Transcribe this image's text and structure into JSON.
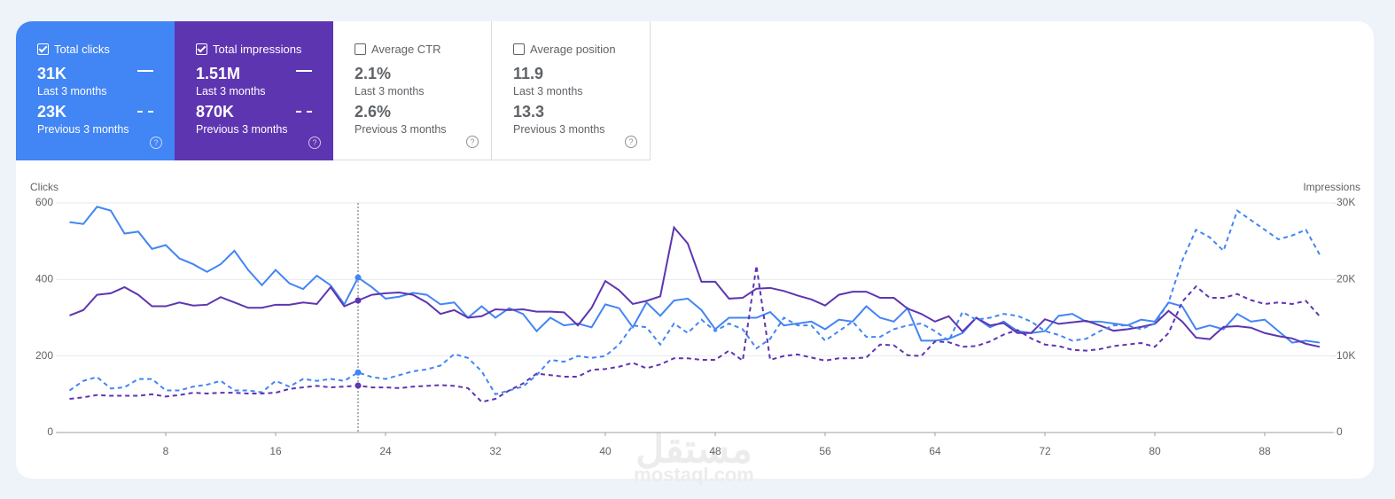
{
  "cards": [
    {
      "label": "Total clicks",
      "checked": true,
      "current": "31K",
      "current_period": "Last 3 months",
      "previous": "23K",
      "previous_period": "Previous 3 months"
    },
    {
      "label": "Total impressions",
      "checked": true,
      "current": "1.51M",
      "current_period": "Last 3 months",
      "previous": "870K",
      "previous_period": "Previous 3 months"
    },
    {
      "label": "Average CTR",
      "checked": false,
      "current": "2.1%",
      "current_period": "Last 3 months",
      "previous": "2.6%",
      "previous_period": "Previous 3 months"
    },
    {
      "label": "Average position",
      "checked": false,
      "current": "11.9",
      "current_period": "Last 3 months",
      "previous": "13.3",
      "previous_period": "Previous 3 months"
    }
  ],
  "watermark": [
    "مستقل",
    "mostaql.com"
  ],
  "chart_data": {
    "type": "line",
    "y_label": "Clicks",
    "y2_label": "Impressions",
    "x": [
      1,
      2,
      3,
      4,
      5,
      6,
      7,
      8,
      9,
      10,
      11,
      12,
      13,
      14,
      15,
      16,
      17,
      18,
      19,
      20,
      21,
      22,
      23,
      24,
      25,
      26,
      27,
      28,
      29,
      30,
      31,
      32,
      33,
      34,
      35,
      36,
      37,
      38,
      39,
      40,
      41,
      42,
      43,
      44,
      45,
      46,
      47,
      48,
      49,
      50,
      51,
      52,
      53,
      54,
      55,
      56,
      57,
      58,
      59,
      60,
      61,
      62,
      63,
      64,
      65,
      66,
      67,
      68,
      69,
      70,
      71,
      72,
      73,
      74,
      75,
      76,
      77,
      78,
      79,
      80,
      81,
      82,
      83,
      84,
      85,
      86,
      87,
      88,
      89,
      90,
      91,
      92
    ],
    "xlim": [
      0,
      93
    ],
    "xticks": [
      8,
      16,
      24,
      32,
      40,
      48,
      56,
      64,
      72,
      80,
      88
    ],
    "ylim": [
      0,
      600
    ],
    "yticks": [
      0,
      200,
      400,
      600
    ],
    "y2lim": [
      0,
      30000
    ],
    "y2ticks": [
      0,
      {
        "value": 10000,
        "label": "10K"
      },
      {
        "value": 20000,
        "label": "20K"
      },
      {
        "value": 30000,
        "label": "30K"
      }
    ],
    "grid": true,
    "highlight_x": 22,
    "series": [
      {
        "color": "#4285f4",
        "dash": "solid",
        "axis": "y",
        "values": [
          550,
          545,
          590,
          580,
          520,
          525,
          480,
          490,
          455,
          440,
          420,
          440,
          475,
          425,
          385,
          425,
          390,
          375,
          410,
          385,
          335,
          405,
          380,
          350,
          355,
          365,
          360,
          335,
          340,
          300,
          330,
          300,
          325,
          310,
          265,
          300,
          280,
          285,
          275,
          335,
          325,
          275,
          340,
          305,
          345,
          350,
          320,
          270,
          300,
          300,
          300,
          315,
          280,
          285,
          290,
          270,
          295,
          290,
          330,
          300,
          290,
          325,
          240,
          240,
          245,
          260,
          300,
          275,
          290,
          265,
          260,
          265,
          305,
          310,
          290,
          290,
          285,
          280,
          295,
          290,
          340,
          330,
          270,
          280,
          270,
          310,
          290,
          295,
          265,
          235,
          240,
          235
        ]
      },
      {
        "color": "#5e35b1",
        "dash": "solid",
        "axis": "y2",
        "values": [
          15300,
          16000,
          18000,
          18200,
          19000,
          18000,
          16500,
          16500,
          17000,
          16600,
          16700,
          17700,
          17000,
          16300,
          16300,
          16700,
          16700,
          17000,
          16800,
          19000,
          16500,
          17260,
          18000,
          18200,
          18300,
          18000,
          17000,
          15500,
          16000,
          15000,
          15200,
          16100,
          16000,
          16100,
          15800,
          15800,
          15700,
          14000,
          16300,
          19800,
          18600,
          16800,
          17200,
          17800,
          26800,
          24700,
          19700,
          19700,
          17500,
          17600,
          18800,
          18900,
          18500,
          17900,
          17400,
          16600,
          18000,
          18400,
          18400,
          17600,
          17600,
          16200,
          15500,
          14500,
          15200,
          13200,
          15000,
          14000,
          14300,
          13000,
          13000,
          14800,
          14200,
          14400,
          14600,
          14000,
          13300,
          13500,
          13800,
          14200,
          15900,
          14500,
          12400,
          12200,
          13800,
          13900,
          13700,
          13000,
          12600,
          12300,
          11600,
          11200
        ]
      },
      {
        "color": "#4285f4",
        "dash": "dashed",
        "axis": "y",
        "values": [
          110,
          135,
          145,
          115,
          118,
          140,
          140,
          110,
          110,
          120,
          125,
          135,
          110,
          110,
          105,
          135,
          120,
          140,
          135,
          140,
          135,
          157,
          145,
          140,
          150,
          160,
          165,
          175,
          205,
          195,
          160,
          100,
          110,
          120,
          150,
          190,
          185,
          200,
          195,
          200,
          230,
          280,
          275,
          230,
          285,
          260,
          295,
          265,
          285,
          270,
          220,
          245,
          300,
          280,
          280,
          240,
          265,
          290,
          250,
          250,
          270,
          280,
          285,
          265,
          240,
          315,
          295,
          300,
          310,
          305,
          290,
          265,
          255,
          240,
          245,
          265,
          280,
          280,
          270,
          285,
          340,
          450,
          530,
          510,
          475,
          580,
          555,
          530,
          505,
          515,
          530,
          465
        ]
      },
      {
        "color": "#5e35b1",
        "dash": "dashed",
        "axis": "y2",
        "values": [
          4400,
          4600,
          4900,
          4800,
          4800,
          4800,
          5000,
          4700,
          4900,
          5200,
          5100,
          5200,
          5200,
          5100,
          5100,
          5200,
          5700,
          5900,
          6100,
          5900,
          6000,
          6140,
          5900,
          5900,
          5800,
          6000,
          6100,
          6200,
          6100,
          5800,
          4000,
          4400,
          5500,
          6400,
          7700,
          7500,
          7300,
          7300,
          8200,
          8300,
          8600,
          9100,
          8400,
          8900,
          9700,
          9700,
          9500,
          9500,
          10700,
          9400,
          21800,
          9500,
          10000,
          10200,
          9800,
          9400,
          9700,
          9700,
          9800,
          11500,
          11400,
          10100,
          10000,
          11900,
          11800,
          11200,
          11300,
          11900,
          12800,
          13400,
          12300,
          11500,
          11300,
          10800,
          10700,
          10900,
          11300,
          11500,
          11700,
          11200,
          13000,
          17100,
          19100,
          17600,
          17600,
          18100,
          17300,
          16800,
          17000,
          16800,
          17200,
          15200
        ]
      }
    ]
  }
}
